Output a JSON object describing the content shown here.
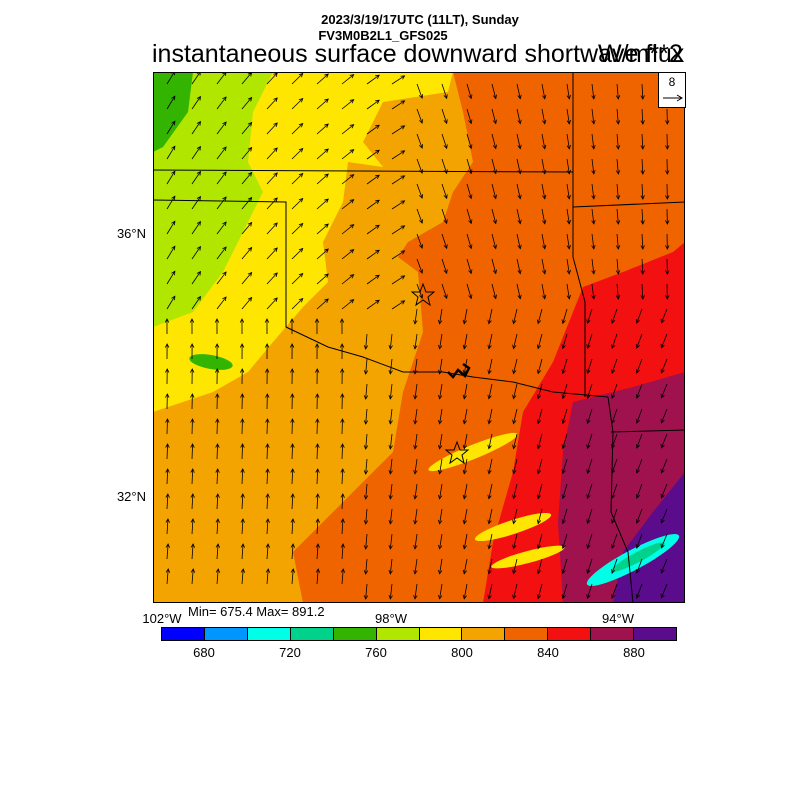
{
  "header": {
    "datetime": "2023/3/19/17UTC (11LT), Sunday",
    "model": "FV3M0B2L1_GFS025",
    "title": "instantaneous surface downward shortwave flux",
    "units": "W/m**2"
  },
  "map": {
    "lat_labels": [
      "36°N",
      "32°N"
    ],
    "lon_labels": [
      "102°W",
      "98°W",
      "94°W"
    ],
    "markers": [
      "star",
      "star"
    ],
    "vector_reference": "8",
    "colors": {
      "yellow": "#ffe600",
      "light_green": "#b0e600",
      "green": "#32b400",
      "light_orange": "#f4a400",
      "orange": "#f06400",
      "red": "#f21010",
      "dark_red": "#a0124e",
      "purple": "#5a0c8c",
      "cyan": "#00ffe6",
      "teal": "#00d28c"
    }
  },
  "stats": {
    "text": "Min= 675.4 Max= 891.2"
  },
  "colorbar": {
    "colors": [
      "#0000ff",
      "#0096ff",
      "#00ffe6",
      "#00d28c",
      "#32b400",
      "#b0e600",
      "#ffe600",
      "#f4a400",
      "#f06400",
      "#f21010",
      "#a0124e",
      "#5a0c8c"
    ],
    "ticks": [
      "680",
      "720",
      "760",
      "800",
      "840",
      "880"
    ]
  }
}
